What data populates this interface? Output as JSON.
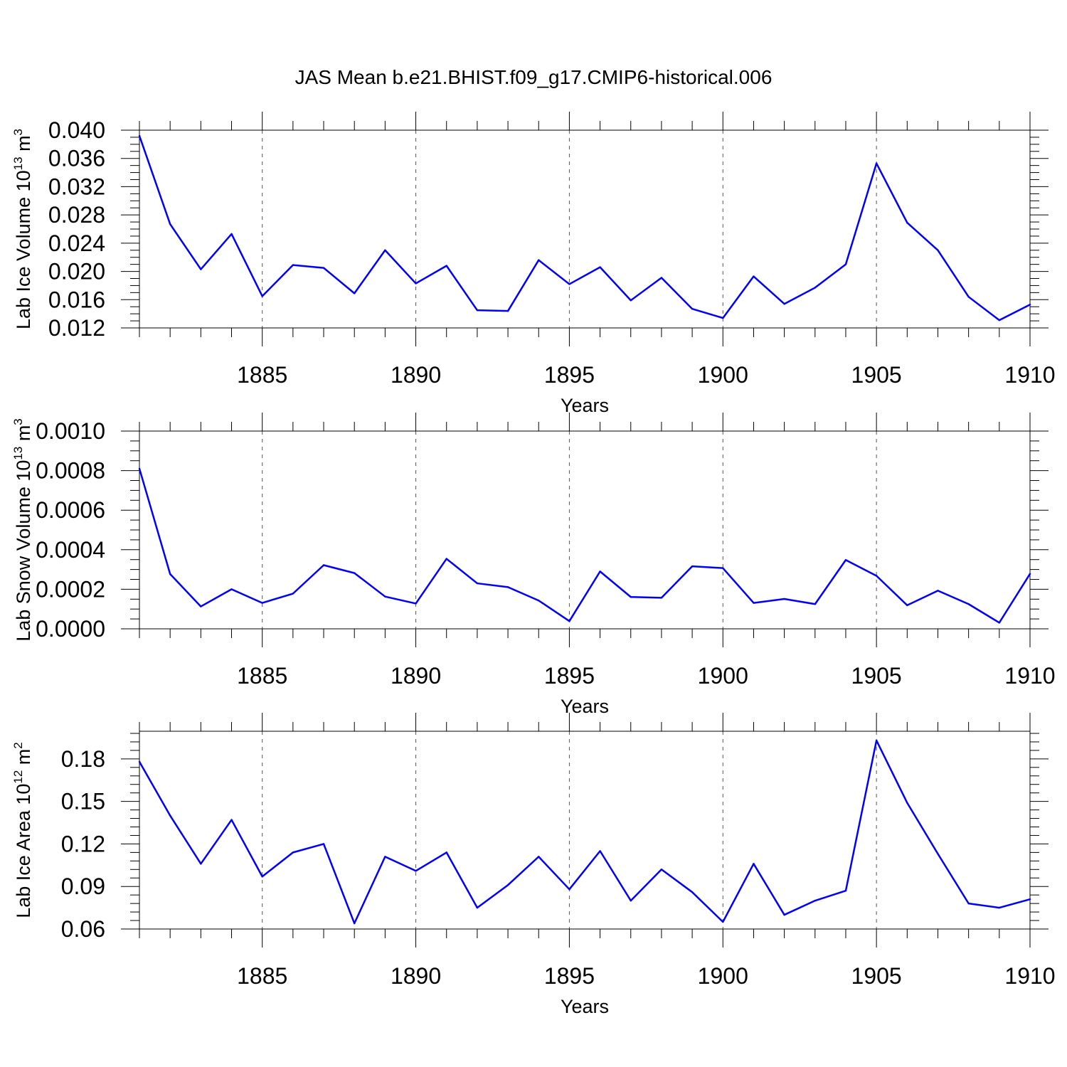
{
  "title": "JAS Mean b.e21.BHIST.f09_g17.CMIP6-historical.006",
  "line_color": "#0000ff",
  "chart_data": [
    {
      "type": "line",
      "name": "ice-volume",
      "ylabel": "Lab Ice Volume 10",
      "ylabel_exponent": "13",
      "ylabel_unit": "m",
      "ylabel_unit_exponent": "3",
      "xlabel": "Years",
      "xlim": [
        1881,
        1910
      ],
      "ylim": [
        0.012,
        0.04
      ],
      "x_ticks": [
        1885,
        1890,
        1895,
        1900,
        1905,
        1910
      ],
      "x_tick_labels": [
        "1885",
        "1890",
        "1895",
        "1900",
        "1905",
        "1910"
      ],
      "y_ticks": [
        0.012,
        0.016,
        0.02,
        0.024,
        0.028,
        0.032,
        0.036,
        0.04
      ],
      "y_tick_labels": [
        "0.012",
        "0.016",
        "0.020",
        "0.024",
        "0.028",
        "0.032",
        "0.036",
        "0.040"
      ],
      "y_minor_step": 0.001,
      "x": [
        1881,
        1882,
        1883,
        1884,
        1885,
        1886,
        1887,
        1888,
        1889,
        1890,
        1891,
        1892,
        1893,
        1894,
        1895,
        1896,
        1897,
        1898,
        1899,
        1900,
        1901,
        1902,
        1903,
        1904,
        1905,
        1906,
        1907,
        1908,
        1909,
        1910
      ],
      "values": [
        0.0392,
        0.0267,
        0.0203,
        0.0253,
        0.0165,
        0.0209,
        0.0205,
        0.0169,
        0.023,
        0.0183,
        0.0208,
        0.0145,
        0.0144,
        0.0216,
        0.0182,
        0.0206,
        0.0159,
        0.0191,
        0.0147,
        0.0134,
        0.0193,
        0.0154,
        0.0177,
        0.021,
        0.0353,
        0.0269,
        0.023,
        0.0164,
        0.0131,
        0.0153
      ]
    },
    {
      "type": "line",
      "name": "snow-volume",
      "ylabel": "Lab Snow Volume 10",
      "ylabel_exponent": "13",
      "ylabel_unit": "m",
      "ylabel_unit_exponent": "3",
      "xlabel": "Years",
      "xlim": [
        1881,
        1910
      ],
      "ylim": [
        0.0,
        0.001
      ],
      "x_ticks": [
        1885,
        1890,
        1895,
        1900,
        1905,
        1910
      ],
      "x_tick_labels": [
        "1885",
        "1890",
        "1895",
        "1900",
        "1905",
        "1910"
      ],
      "y_ticks": [
        0.0,
        0.0002,
        0.0004,
        0.0006,
        0.0008,
        0.001
      ],
      "y_tick_labels": [
        "0.0000",
        "0.0002",
        "0.0004",
        "0.0006",
        "0.0008",
        "0.0010"
      ],
      "y_minor_step": 5e-05,
      "x": [
        1881,
        1882,
        1883,
        1884,
        1885,
        1886,
        1887,
        1888,
        1889,
        1890,
        1891,
        1892,
        1893,
        1894,
        1895,
        1896,
        1897,
        1898,
        1899,
        1900,
        1901,
        1902,
        1903,
        1904,
        1905,
        1906,
        1907,
        1908,
        1909,
        1910
      ],
      "values": [
        0.00081,
        0.000277,
        0.000113,
        0.0002,
        0.000131,
        0.000178,
        0.000322,
        0.000282,
        0.000163,
        0.000128,
        0.000354,
        0.00023,
        0.000211,
        0.000143,
        3.9e-05,
        0.00029,
        0.000161,
        0.000157,
        0.000316,
        0.000307,
        0.000131,
        0.000151,
        0.000125,
        0.000348,
        0.000268,
        0.000119,
        0.000193,
        0.000125,
        3.1e-05,
        0.000278
      ]
    },
    {
      "type": "line",
      "name": "ice-area",
      "ylabel": "Lab Ice Area 10",
      "ylabel_exponent": "12",
      "ylabel_unit": "m",
      "ylabel_unit_exponent": "2",
      "xlabel": "Years",
      "xlim": [
        1881,
        1910
      ],
      "ylim": [
        0.06,
        0.1995
      ],
      "x_ticks": [
        1885,
        1890,
        1895,
        1900,
        1905,
        1910
      ],
      "x_tick_labels": [
        "1885",
        "1890",
        "1895",
        "1900",
        "1905",
        "1910"
      ],
      "y_ticks": [
        0.06,
        0.09,
        0.12,
        0.15,
        0.18
      ],
      "y_tick_labels": [
        "0.06",
        "0.09",
        "0.12",
        "0.15",
        "0.18"
      ],
      "y_minor_step": 0.006,
      "x": [
        1881,
        1882,
        1883,
        1884,
        1885,
        1886,
        1887,
        1888,
        1889,
        1890,
        1891,
        1892,
        1893,
        1894,
        1895,
        1896,
        1897,
        1898,
        1899,
        1900,
        1901,
        1902,
        1903,
        1904,
        1905,
        1906,
        1907,
        1908,
        1909,
        1910
      ],
      "values": [
        0.178,
        0.14,
        0.106,
        0.137,
        0.097,
        0.114,
        0.12,
        0.064,
        0.111,
        0.101,
        0.114,
        0.075,
        0.091,
        0.111,
        0.088,
        0.115,
        0.08,
        0.102,
        0.086,
        0.065,
        0.106,
        0.07,
        0.08,
        0.087,
        0.193,
        0.149,
        0.113,
        0.078,
        0.075,
        0.081
      ]
    }
  ]
}
